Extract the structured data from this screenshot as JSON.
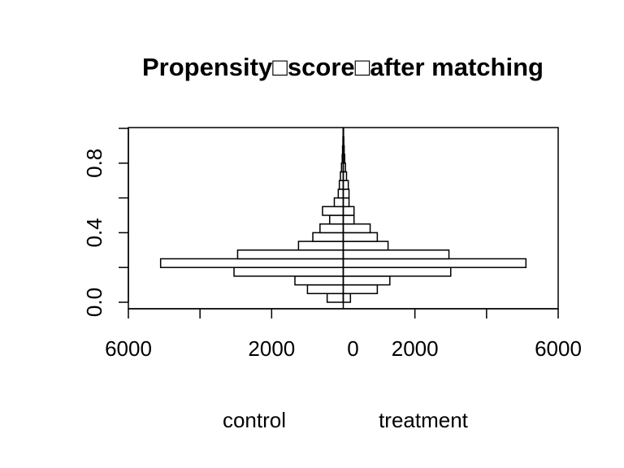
{
  "chart_data": {
    "type": "bar",
    "orientation": "horizontal-mirrored",
    "title": "Propensity□score□after matching",
    "group_labels": {
      "left": "control",
      "right": "treatment"
    },
    "xlim": [
      -6000,
      6000
    ],
    "ylim": [
      0,
      1
    ],
    "x_ticks": [
      -6000,
      -2000,
      0,
      2000,
      6000
    ],
    "x_tick_labels": [
      "6000",
      "2000",
      "0",
      "2000",
      "6000"
    ],
    "x_minor_ticks": [
      -4000,
      4000
    ],
    "y_ticks": [
      0.0,
      0.4,
      0.8
    ],
    "y_tick_labels": [
      "0.0",
      "0.4",
      "0.8"
    ],
    "y_minor_ticks": [
      0.2,
      0.6,
      1.0
    ],
    "bin_width": 0.05,
    "series": [
      {
        "name": "control",
        "bins": [
          {
            "y0": 0.0,
            "y1": 0.05,
            "count": 450
          },
          {
            "y0": 0.05,
            "y1": 0.1,
            "count": 1000
          },
          {
            "y0": 0.1,
            "y1": 0.15,
            "count": 1350
          },
          {
            "y0": 0.15,
            "y1": 0.2,
            "count": 3050
          },
          {
            "y0": 0.2,
            "y1": 0.25,
            "count": 5100
          },
          {
            "y0": 0.25,
            "y1": 0.3,
            "count": 2950
          },
          {
            "y0": 0.3,
            "y1": 0.35,
            "count": 1250
          },
          {
            "y0": 0.35,
            "y1": 0.4,
            "count": 850
          },
          {
            "y0": 0.4,
            "y1": 0.45,
            "count": 650
          },
          {
            "y0": 0.45,
            "y1": 0.5,
            "count": 380
          },
          {
            "y0": 0.5,
            "y1": 0.55,
            "count": 580
          },
          {
            "y0": 0.55,
            "y1": 0.6,
            "count": 250
          },
          {
            "y0": 0.6,
            "y1": 0.65,
            "count": 140
          },
          {
            "y0": 0.65,
            "y1": 0.7,
            "count": 110
          },
          {
            "y0": 0.7,
            "y1": 0.75,
            "count": 80
          },
          {
            "y0": 0.75,
            "y1": 0.8,
            "count": 50
          },
          {
            "y0": 0.8,
            "y1": 0.85,
            "count": 30
          },
          {
            "y0": 0.85,
            "y1": 0.9,
            "count": 20
          },
          {
            "y0": 0.9,
            "y1": 0.95,
            "count": 10
          },
          {
            "y0": 0.95,
            "y1": 1.0,
            "count": 5
          }
        ]
      },
      {
        "name": "treatment",
        "bins": [
          {
            "y0": 0.0,
            "y1": 0.05,
            "count": 200
          },
          {
            "y0": 0.05,
            "y1": 0.1,
            "count": 950
          },
          {
            "y0": 0.1,
            "y1": 0.15,
            "count": 1300
          },
          {
            "y0": 0.15,
            "y1": 0.2,
            "count": 3000
          },
          {
            "y0": 0.2,
            "y1": 0.25,
            "count": 5100
          },
          {
            "y0": 0.25,
            "y1": 0.3,
            "count": 2950
          },
          {
            "y0": 0.3,
            "y1": 0.35,
            "count": 1250
          },
          {
            "y0": 0.35,
            "y1": 0.4,
            "count": 950
          },
          {
            "y0": 0.4,
            "y1": 0.45,
            "count": 750
          },
          {
            "y0": 0.45,
            "y1": 0.5,
            "count": 300
          },
          {
            "y0": 0.5,
            "y1": 0.55,
            "count": 300
          },
          {
            "y0": 0.55,
            "y1": 0.6,
            "count": 160
          },
          {
            "y0": 0.6,
            "y1": 0.65,
            "count": 160
          },
          {
            "y0": 0.65,
            "y1": 0.7,
            "count": 140
          },
          {
            "y0": 0.7,
            "y1": 0.75,
            "count": 90
          },
          {
            "y0": 0.75,
            "y1": 0.8,
            "count": 60
          },
          {
            "y0": 0.8,
            "y1": 0.85,
            "count": 40
          },
          {
            "y0": 0.85,
            "y1": 0.9,
            "count": 25
          },
          {
            "y0": 0.9,
            "y1": 0.95,
            "count": 15
          },
          {
            "y0": 0.95,
            "y1": 1.0,
            "count": 8
          }
        ]
      }
    ],
    "bar_fill": "#ffffff",
    "bar_stroke": "#000000",
    "grid": false
  }
}
